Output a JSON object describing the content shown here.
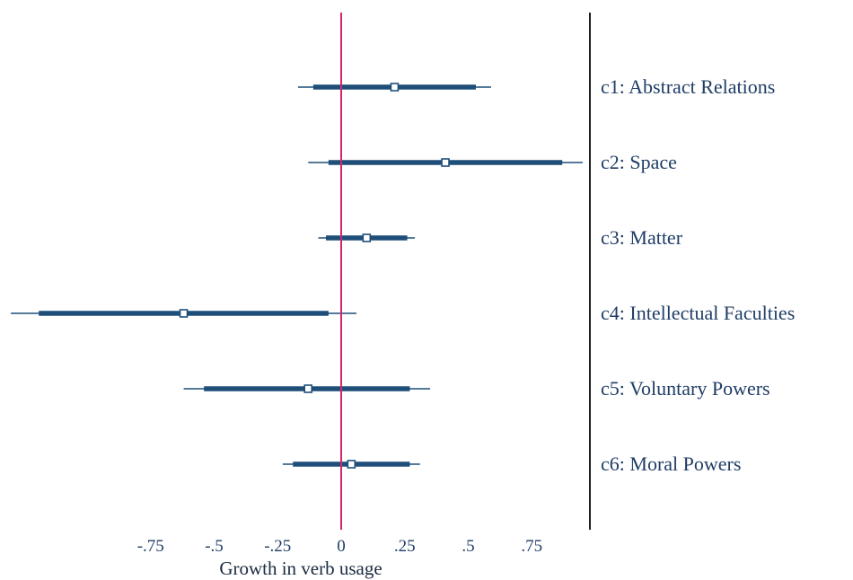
{
  "chart_data": {
    "type": "coefficient-plot",
    "title": "",
    "xlabel": "Growth in verb usage",
    "ylabel": "",
    "xlim": [
      -1.3,
      1.0
    ],
    "xticks": [
      -0.75,
      -0.5,
      -0.25,
      0,
      0.25,
      0.5,
      0.75
    ],
    "xtick_labels": [
      "-.75",
      "-.5",
      "-.25",
      "0",
      ".25",
      ".5",
      ".75"
    ],
    "reference_line": {
      "x": 0,
      "color": "#d6246e"
    },
    "grid": false,
    "colors": {
      "estimate": "#1f4e79",
      "marker_fill": "#ffffff",
      "axis": "#222222"
    },
    "categories": [
      {
        "label": "c1: Abstract Relations",
        "estimate": 0.21,
        "ci95": [
          -0.17,
          0.59
        ],
        "ci90": [
          -0.11,
          0.53
        ]
      },
      {
        "label": "c2: Space",
        "estimate": 0.41,
        "ci95": [
          -0.13,
          0.95
        ],
        "ci90": [
          -0.05,
          0.87
        ]
      },
      {
        "label": "c3: Matter",
        "estimate": 0.1,
        "ci95": [
          -0.09,
          0.29
        ],
        "ci90": [
          -0.06,
          0.26
        ]
      },
      {
        "label": "c4: Intellectual Faculties",
        "estimate": -0.62,
        "ci95": [
          -1.3,
          0.06
        ],
        "ci90": [
          -1.19,
          -0.05
        ]
      },
      {
        "label": "c5: Voluntary Powers",
        "estimate": -0.13,
        "ci95": [
          -0.62,
          0.35
        ],
        "ci90": [
          -0.54,
          0.27
        ]
      },
      {
        "label": "c6: Moral Powers",
        "estimate": 0.04,
        "ci95": [
          -0.23,
          0.31
        ],
        "ci90": [
          -0.19,
          0.27
        ]
      }
    ]
  }
}
